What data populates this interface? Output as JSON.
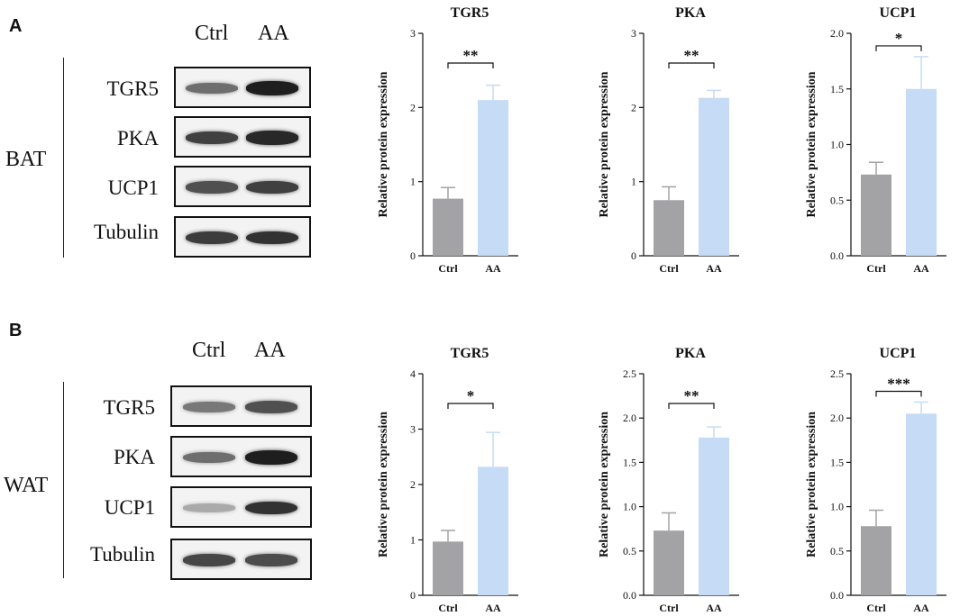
{
  "panels": [
    {
      "letter": "A",
      "tissue": "BAT",
      "lanes": [
        "Ctrl",
        "AA"
      ],
      "blot_rows": [
        "TGR5",
        "PKA",
        "UCP1",
        "Tubulin"
      ],
      "blot_intensity": [
        [
          0.55,
          0.95
        ],
        [
          0.78,
          0.9
        ],
        [
          0.7,
          0.78
        ],
        [
          0.8,
          0.85
        ]
      ]
    },
    {
      "letter": "B",
      "tissue": "WAT",
      "lanes": [
        "Ctrl",
        "AA"
      ],
      "blot_rows": [
        "TGR5",
        "PKA",
        "UCP1",
        "Tubulin"
      ],
      "blot_intensity": [
        [
          0.5,
          0.7
        ],
        [
          0.55,
          0.95
        ],
        [
          0.25,
          0.85
        ],
        [
          0.75,
          0.72
        ]
      ]
    }
  ],
  "colors": {
    "ctrl": "#a3a3a6",
    "aa": "#c6dbf6",
    "axis": "#111111"
  },
  "chart_data": [
    {
      "type": "bar",
      "title": "TGR5",
      "ylabel": "Relative protein expression",
      "categories": [
        "Ctrl",
        "AA"
      ],
      "values": [
        0.77,
        2.1
      ],
      "errors": [
        0.15,
        0.2
      ],
      "ylim": [
        0,
        3
      ],
      "yticks": [
        "0",
        "1",
        "2",
        "3"
      ],
      "significance": "**"
    },
    {
      "type": "bar",
      "title": "PKA",
      "ylabel": "Relative protein expression",
      "categories": [
        "Ctrl",
        "AA"
      ],
      "values": [
        0.75,
        2.13
      ],
      "errors": [
        0.18,
        0.1
      ],
      "ylim": [
        0,
        3
      ],
      "yticks": [
        "0",
        "1",
        "2",
        "3"
      ],
      "significance": "**"
    },
    {
      "type": "bar",
      "title": "UCP1",
      "ylabel": "Relative protein expression",
      "categories": [
        "Ctrl",
        "AA"
      ],
      "values": [
        0.73,
        1.5
      ],
      "errors": [
        0.11,
        0.29
      ],
      "ylim": [
        0,
        2
      ],
      "yticks": [
        "0.0",
        "0.5",
        "1.0",
        "1.5",
        "2.0"
      ],
      "significance": "*"
    },
    {
      "type": "bar",
      "title": "TGR5",
      "ylabel": "Relative protein expression",
      "categories": [
        "Ctrl",
        "AA"
      ],
      "values": [
        0.97,
        2.32
      ],
      "errors": [
        0.2,
        0.62
      ],
      "ylim": [
        0,
        4
      ],
      "yticks": [
        "0",
        "1",
        "2",
        "3",
        "4"
      ],
      "significance": "*"
    },
    {
      "type": "bar",
      "title": "PKA",
      "ylabel": "Relative protein expression",
      "categories": [
        "Ctrl",
        "AA"
      ],
      "values": [
        0.73,
        1.78
      ],
      "errors": [
        0.2,
        0.12
      ],
      "ylim": [
        0,
        2.5
      ],
      "yticks": [
        "0.0",
        "0.5",
        "1.0",
        "1.5",
        "2.0",
        "2.5"
      ],
      "significance": "**"
    },
    {
      "type": "bar",
      "title": "UCP1",
      "ylabel": "Relative protein expression",
      "categories": [
        "Ctrl",
        "AA"
      ],
      "values": [
        0.78,
        2.05
      ],
      "errors": [
        0.18,
        0.13
      ],
      "ylim": [
        0,
        2.5
      ],
      "yticks": [
        "0.0",
        "0.5",
        "1.0",
        "1.5",
        "2.0",
        "2.5"
      ],
      "significance": "***"
    }
  ]
}
